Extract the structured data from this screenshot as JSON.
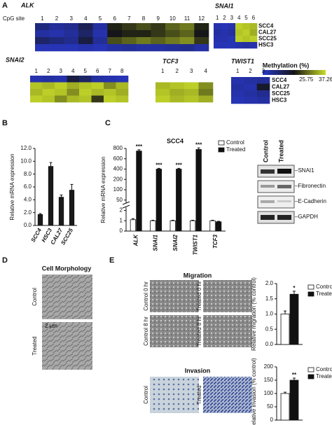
{
  "panel_labels": [
    "A",
    "B",
    "C",
    "D",
    "E"
  ],
  "heatmaps": {
    "site_label": "CpG site",
    "row_labels": [
      "SCC4",
      "CAL27",
      "SCC25",
      "HSC3"
    ],
    "legend": {
      "title": "Methylation (%)",
      "ticks": [
        {
          "value": 0,
          "label": "0.0"
        },
        25.75,
        37.26
      ]
    },
    "genes": [
      {
        "name": "ALK",
        "sites": [
          1,
          2,
          3,
          4,
          5,
          6,
          7,
          8,
          9,
          10,
          11,
          12
        ],
        "values": [
          [
            8,
            5,
            6,
            12,
            4,
            20,
            22,
            24,
            22,
            26,
            28,
            20
          ],
          [
            4,
            3,
            5,
            10,
            3,
            18,
            20,
            20,
            22,
            24,
            26,
            18
          ],
          [
            10,
            8,
            6,
            14,
            5,
            24,
            26,
            28,
            26,
            28,
            30,
            22
          ],
          [
            2,
            2,
            2,
            3,
            2,
            4,
            5,
            4,
            4,
            5,
            6,
            4
          ]
        ]
      },
      {
        "name": "SNAI1",
        "sites": [
          1,
          2,
          3,
          4,
          5,
          6
        ],
        "values": [
          [
            3,
            2,
            3,
            36,
            35,
            34
          ],
          [
            4,
            3,
            4,
            35,
            36,
            33
          ],
          [
            3,
            3,
            2,
            36,
            35,
            36
          ],
          [
            2,
            2,
            2,
            3,
            4,
            3
          ]
        ]
      },
      {
        "name": "SNAI2",
        "sites": [
          1,
          2,
          3,
          4,
          5,
          6,
          7,
          8
        ],
        "values": [
          [
            3,
            4,
            3,
            14,
            10,
            4,
            3,
            2
          ],
          [
            35,
            34,
            36,
            33,
            35,
            36,
            30,
            34
          ],
          [
            34,
            36,
            35,
            30,
            36,
            34,
            35,
            33
          ],
          [
            36,
            35,
            30,
            34,
            35,
            22,
            36,
            35
          ]
        ]
      },
      {
        "name": "TCF3",
        "sites": [
          1,
          2,
          3,
          4
        ],
        "values": [
          [
            null,
            null,
            null,
            null
          ],
          [
            34,
            35,
            36,
            30
          ],
          [
            35,
            33,
            34,
            28
          ],
          [
            36,
            34,
            35,
            33
          ]
        ]
      },
      {
        "name": "TWIST1",
        "sites": [
          1,
          2,
          3
        ],
        "values": [
          [
            3,
            4,
            5
          ],
          [
            4,
            3,
            16
          ],
          [
            3,
            4,
            6
          ],
          [
            2,
            3,
            4
          ]
        ]
      }
    ]
  },
  "chart_data": [
    {
      "type": "bar",
      "y_label": "Relative mRNA expression",
      "categories": [
        "SCC4",
        "HSC3",
        "CAL27",
        "SCC25"
      ],
      "values": [
        1.7,
        9.2,
        4.4,
        5.5
      ],
      "errors": [
        0.15,
        0.6,
        0.35,
        0.9
      ],
      "color": "#1a1a1a",
      "ylim": [
        0,
        12
      ],
      "yticks": [
        {
          "value": 0,
          "label": "0.0"
        },
        {
          "value": 2,
          "label": "2.0"
        },
        {
          "value": 4,
          "label": "4.0"
        },
        {
          "value": 6,
          "label": "6.0"
        },
        {
          "value": 8,
          "label": "8.0"
        },
        {
          "value": 10,
          "label": "10.0"
        },
        {
          "value": 12,
          "label": "12.0"
        }
      ]
    },
    {
      "type": "bar",
      "title": "SCC4",
      "y_label": "Relative mRNA expression",
      "categories": [
        "ALK",
        "SNAI1",
        "SNAI2",
        "TWIST1",
        "TCF3"
      ],
      "series": [
        {
          "name": "Control",
          "color": "#ffffff",
          "values": [
            1.1,
            1,
            1,
            1,
            1
          ],
          "errors": [
            0.1,
            0.05,
            0.05,
            0.05,
            0.05
          ]
        },
        {
          "name": "Treated",
          "color": "#111111",
          "values": [
            750,
            400,
            400,
            780,
            0.9
          ],
          "errors": [
            25,
            15,
            15,
            30,
            0.05
          ]
        }
      ],
      "annotations": [
        "***",
        "***",
        "***",
        "***",
        null
      ],
      "ylim": [
        0,
        800
      ],
      "yticks": [
        0,
        1,
        2,
        50,
        100,
        200,
        400,
        600,
        800
      ],
      "axis_break": true
    },
    {
      "type": "bar",
      "y_label": "Relative migration (% control)",
      "categories": [
        null
      ],
      "series": [
        {
          "name": "Control",
          "color": "#ffffff",
          "values": [
            1.0
          ],
          "errors": [
            0.1
          ]
        },
        {
          "name": "Treated",
          "color": "#111111",
          "values": [
            1.65
          ],
          "errors": [
            0.1
          ]
        }
      ],
      "annotations": [
        "*"
      ],
      "ylim": [
        0,
        2
      ],
      "yticks": [
        {
          "value": 0,
          "label": "0.0"
        },
        {
          "value": 0.5,
          "label": "0.5"
        },
        {
          "value": 1,
          "label": "1.0"
        },
        {
          "value": 1.5,
          "label": "1.5"
        },
        {
          "value": 2,
          "label": "2.0"
        }
      ]
    },
    {
      "type": "bar",
      "y_label": "Relative invasion (% control)",
      "categories": [
        null
      ],
      "series": [
        {
          "name": "Control",
          "color": "#ffffff",
          "values": [
            100
          ],
          "errors": [
            5
          ]
        },
        {
          "name": "Treated",
          "color": "#111111",
          "values": [
            150
          ],
          "errors": [
            8
          ]
        }
      ],
      "annotations": [
        "**"
      ],
      "ylim": [
        0,
        200
      ],
      "yticks": [
        0,
        50,
        100,
        150,
        200
      ]
    }
  ],
  "western": {
    "columns": [
      "Control",
      "Treated"
    ],
    "bands": [
      "–SNAI1",
      "–Fibronectin",
      "–E-Cadherin",
      "–GAPDH"
    ]
  },
  "morphology": {
    "title": "Cell Morphology",
    "rows": [
      "Control",
      "Treated"
    ],
    "scale": "2 μm"
  },
  "migration": {
    "title": "Migration",
    "panels": [
      "Control 0 hr",
      "Treated 0 hr",
      "Control 8 hr",
      "Treated 8 hr"
    ]
  },
  "invasion": {
    "title": "Invasion",
    "panels": [
      "Control",
      "Treated"
    ]
  }
}
